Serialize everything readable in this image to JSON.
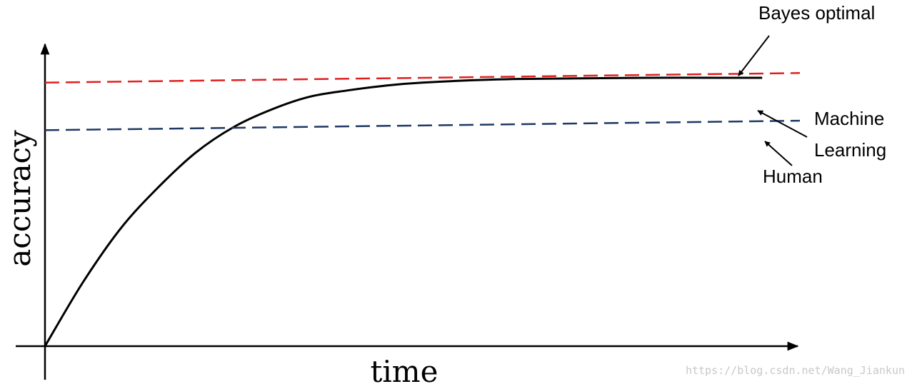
{
  "chart_data": {
    "type": "line",
    "xlabel": "time",
    "ylabel": "accuracy",
    "xlim": [
      0,
      100
    ],
    "ylim": [
      0,
      100
    ],
    "grid": false,
    "ticks": "none",
    "series": [
      {
        "name": "Bayes optimal",
        "style": "dashed",
        "color": "#e02020",
        "x": [
          0,
          100
        ],
        "y": [
          83,
          86
        ]
      },
      {
        "name": "Machine Learning",
        "style": "solid",
        "color": "#000000",
        "x": [
          0,
          5,
          10,
          15,
          20,
          25,
          30,
          35,
          40,
          45,
          50,
          60,
          70,
          80,
          90,
          95
        ],
        "y": [
          0,
          20,
          37,
          50,
          61,
          69,
          74.5,
          78.5,
          80.5,
          82,
          83,
          84,
          84.3,
          84.5,
          84.5,
          84.5
        ]
      },
      {
        "name": "Human",
        "style": "dashed",
        "color": "#1f3864",
        "x": [
          0,
          100
        ],
        "y": [
          68,
          71
        ]
      }
    ],
    "annotations": [
      "Bayes optimal",
      "Machine",
      "Learning",
      "Human"
    ]
  },
  "watermark": "https://blog.csdn.net/Wang_Jiankun"
}
